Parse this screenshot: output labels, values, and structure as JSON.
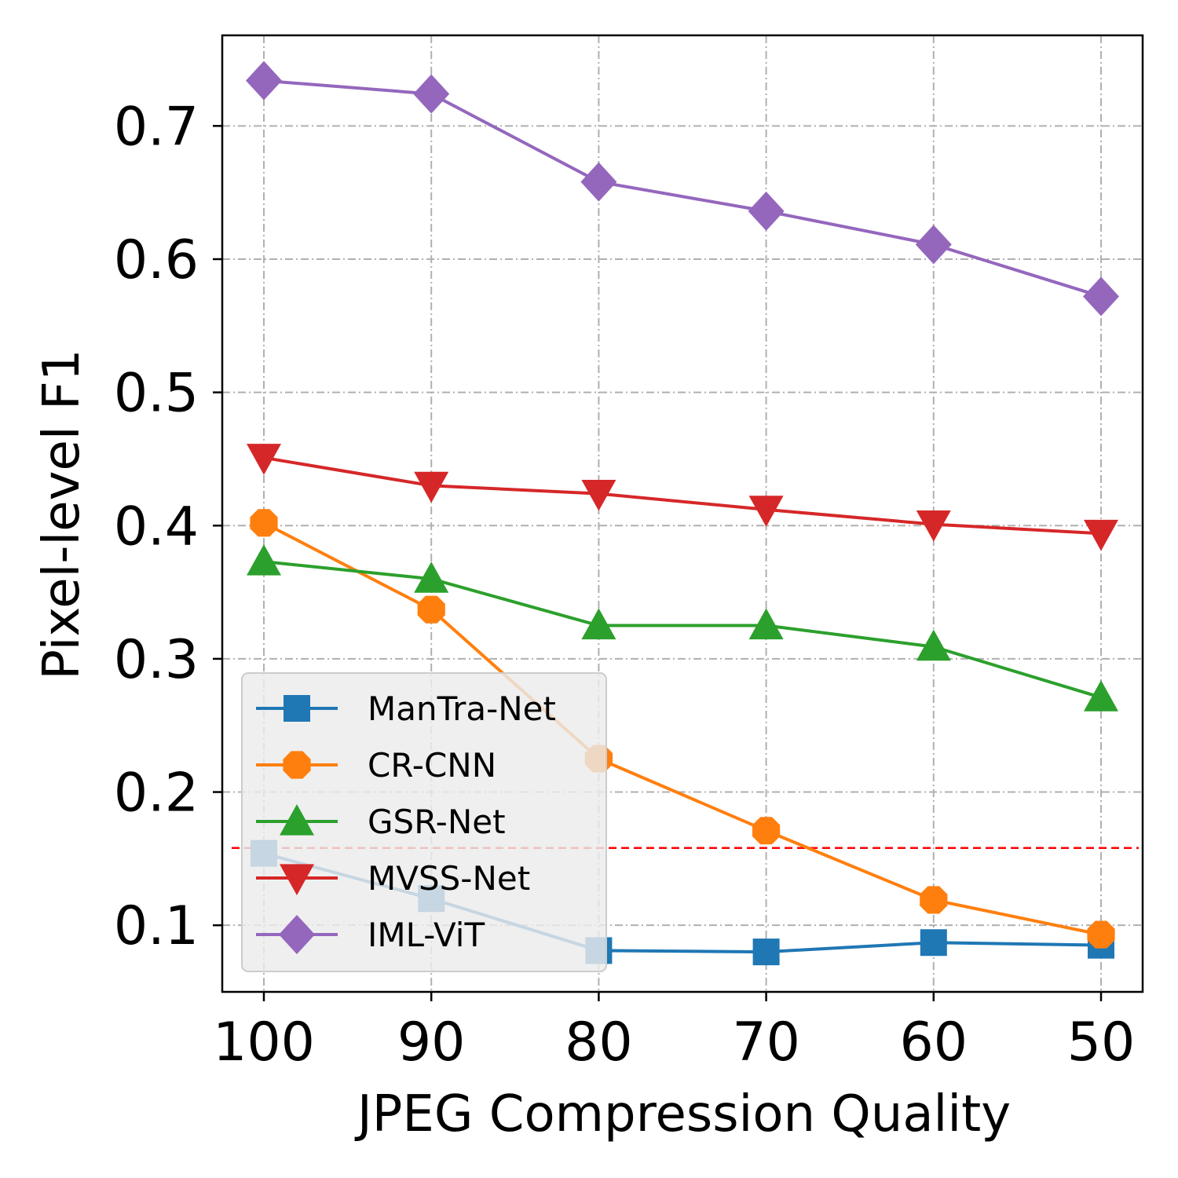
{
  "chart_data": {
    "type": "line",
    "xlabel": "JPEG Compression Quality",
    "ylabel": "Pixel-level F1",
    "x": [
      100,
      90,
      80,
      70,
      60,
      50
    ],
    "x_tick_labels": [
      "100",
      "90",
      "80",
      "70",
      "60",
      "50"
    ],
    "x_reversed": true,
    "ylim": [
      0.05,
      0.768
    ],
    "y_ticks": [
      0.1,
      0.2,
      0.3,
      0.4,
      0.5,
      0.6,
      0.7
    ],
    "y_tick_labels": [
      "0.1",
      "0.2",
      "0.3",
      "0.4",
      "0.5",
      "0.6",
      "0.7"
    ],
    "grid": true,
    "legend_position": "lower-left",
    "reference_line": {
      "y": 0.158,
      "style": "dashed",
      "color": "#ff0000"
    },
    "series": [
      {
        "name": "ManTra-Net",
        "color": "#1f77b4",
        "marker": "square",
        "values": [
          0.154,
          0.12,
          0.081,
          0.08,
          0.087,
          0.085
        ]
      },
      {
        "name": "CR-CNN",
        "color": "#ff7f0e",
        "marker": "octagon",
        "values": [
          0.402,
          0.337,
          0.225,
          0.171,
          0.119,
          0.093
        ]
      },
      {
        "name": "GSR-Net",
        "color": "#2ca02c",
        "marker": "triangle-up",
        "values": [
          0.373,
          0.36,
          0.325,
          0.325,
          0.309,
          0.271
        ]
      },
      {
        "name": "MVSS-Net",
        "color": "#d62728",
        "marker": "triangle-down",
        "values": [
          0.451,
          0.43,
          0.424,
          0.412,
          0.401,
          0.394
        ]
      },
      {
        "name": "IML-ViT",
        "color": "#9467bd",
        "marker": "diamond",
        "values": [
          0.734,
          0.724,
          0.658,
          0.636,
          0.611,
          0.572
        ]
      }
    ]
  }
}
